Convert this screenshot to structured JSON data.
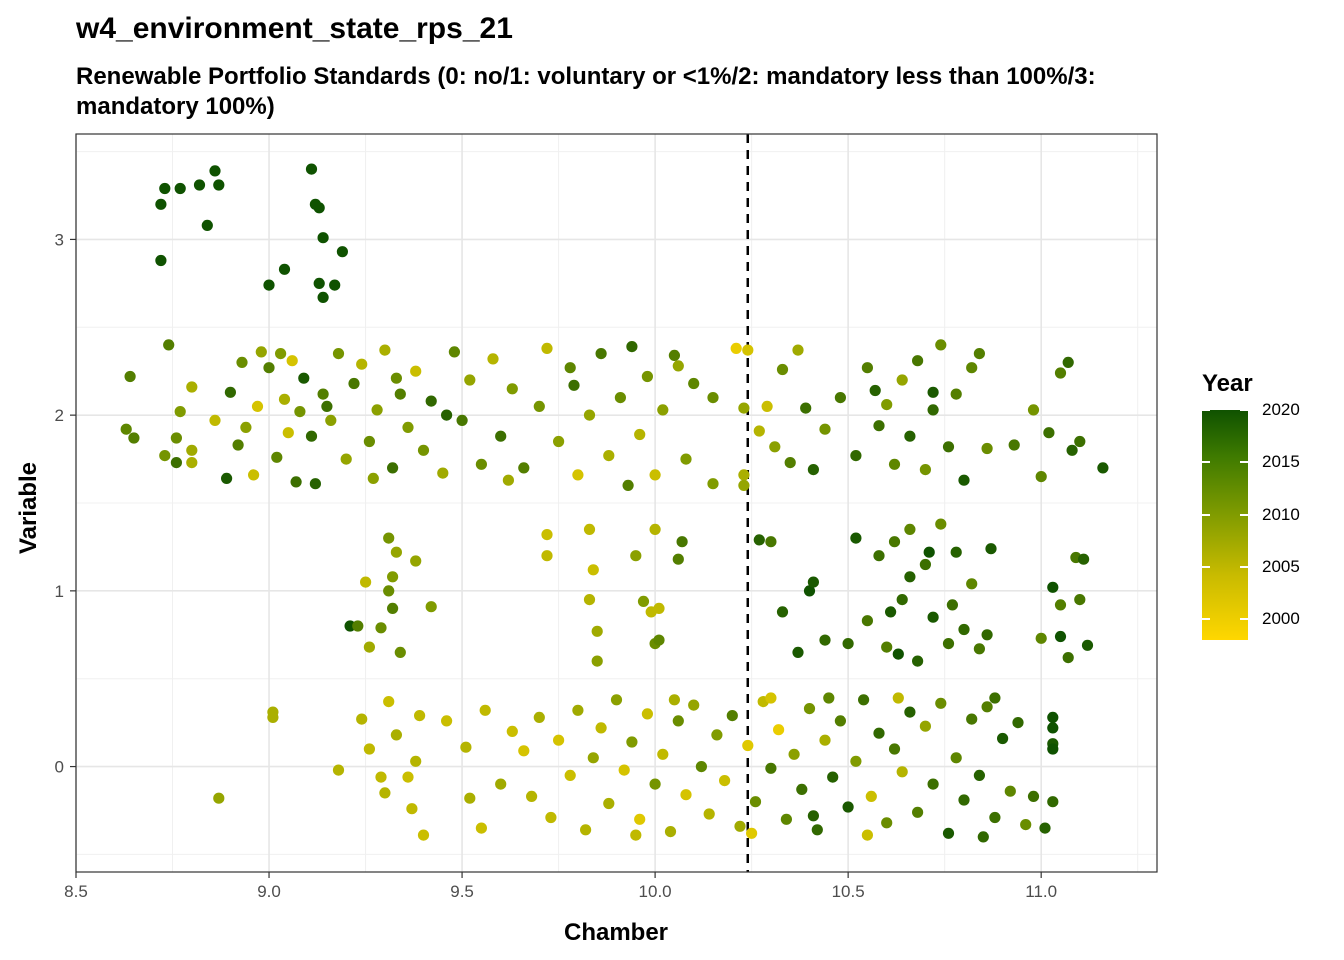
{
  "chart_data": {
    "type": "scatter",
    "title": "w4_environment_state_rps_21",
    "subtitle": "Renewable Portfolio Standards (0: no/1: voluntary or <1%/2: mandatory less than 100%/3: mandatory 100%)",
    "xlabel": "Chamber",
    "ylabel": "Variable",
    "xlim": [
      8.5,
      11.3
    ],
    "ylim": [
      -0.6,
      3.6
    ],
    "x_ticks": [
      "8.5",
      "9.0",
      "9.5",
      "10.0",
      "10.5",
      "11.0"
    ],
    "y_ticks": [
      "0",
      "1",
      "2",
      "3"
    ],
    "grid": true,
    "reference_line": {
      "x": 10.24,
      "style": "dashed"
    },
    "color_scale": {
      "title": "Year",
      "min": 1998,
      "max": 2020,
      "low_color": "#FFD700",
      "high_color": "#0F5200",
      "ticks": [
        "2000",
        "2005",
        "2010",
        "2015",
        "2020"
      ]
    },
    "points": [
      [
        8.72,
        3.2,
        2020
      ],
      [
        8.73,
        3.29,
        2020
      ],
      [
        8.77,
        3.29,
        2020
      ],
      [
        8.82,
        3.31,
        2020
      ],
      [
        8.86,
        3.39,
        2020
      ],
      [
        8.87,
        3.31,
        2020
      ],
      [
        8.84,
        3.08,
        2020
      ],
      [
        8.72,
        2.88,
        2020
      ],
      [
        9.11,
        3.4,
        2020
      ],
      [
        9.12,
        3.2,
        2020
      ],
      [
        9.13,
        3.18,
        2020
      ],
      [
        9.14,
        3.01,
        2020
      ],
      [
        9.19,
        2.93,
        2020
      ],
      [
        9.04,
        2.83,
        2020
      ],
      [
        9.0,
        2.74,
        2020
      ],
      [
        9.13,
        2.75,
        2020
      ],
      [
        9.14,
        2.67,
        2020
      ],
      [
        9.17,
        2.74,
        2020
      ],
      [
        8.64,
        2.22,
        2014
      ],
      [
        8.63,
        1.92,
        2013
      ],
      [
        8.65,
        1.87,
        2014
      ],
      [
        8.73,
        1.77,
        2011
      ],
      [
        8.74,
        2.4,
        2014
      ],
      [
        8.76,
        1.73,
        2016
      ],
      [
        8.76,
        1.87,
        2012
      ],
      [
        8.77,
        2.02,
        2010
      ],
      [
        8.8,
        2.16,
        2006
      ],
      [
        8.8,
        1.73,
        2006
      ],
      [
        8.8,
        1.8,
        2007
      ],
      [
        8.86,
        1.97,
        2004
      ],
      [
        8.89,
        1.64,
        2019
      ],
      [
        8.9,
        2.13,
        2017
      ],
      [
        8.93,
        2.3,
        2012
      ],
      [
        8.94,
        1.93,
        2009
      ],
      [
        8.96,
        1.66,
        2003
      ],
      [
        8.97,
        2.05,
        2002
      ],
      [
        8.98,
        2.36,
        2008
      ],
      [
        9.0,
        2.27,
        2014
      ],
      [
        9.02,
        1.76,
        2013
      ],
      [
        9.04,
        2.09,
        2006
      ],
      [
        9.05,
        1.9,
        2003
      ],
      [
        9.06,
        2.31,
        2002
      ],
      [
        9.07,
        1.62,
        2016
      ],
      [
        9.08,
        2.02,
        2011
      ],
      [
        9.09,
        2.21,
        2019
      ],
      [
        9.11,
        1.88,
        2017
      ],
      [
        9.12,
        1.61,
        2018
      ],
      [
        9.14,
        2.12,
        2014
      ],
      [
        9.16,
        1.97,
        2009
      ],
      [
        9.18,
        2.35,
        2011
      ],
      [
        9.2,
        1.75,
        2008
      ],
      [
        9.22,
        2.18,
        2015
      ],
      [
        9.24,
        2.29,
        2005
      ],
      [
        9.26,
        1.85,
        2012
      ],
      [
        9.28,
        2.03,
        2009
      ],
      [
        9.3,
        2.37,
        2006
      ],
      [
        9.32,
        1.7,
        2016
      ],
      [
        9.34,
        2.12,
        2014
      ],
      [
        9.36,
        1.93,
        2010
      ],
      [
        9.38,
        2.25,
        2003
      ],
      [
        9.4,
        1.8,
        2011
      ],
      [
        9.42,
        2.08,
        2017
      ],
      [
        9.45,
        1.67,
        2007
      ],
      [
        9.48,
        2.36,
        2013
      ],
      [
        9.5,
        1.97,
        2015
      ],
      [
        9.52,
        2.2,
        2008
      ],
      [
        9.55,
        1.72,
        2012
      ],
      [
        9.58,
        2.32,
        2005
      ],
      [
        9.6,
        1.88,
        2016
      ],
      [
        9.63,
        2.15,
        2010
      ],
      [
        9.66,
        1.7,
        2014
      ],
      [
        9.7,
        2.05,
        2011
      ],
      [
        9.72,
        2.38,
        2004
      ],
      [
        9.75,
        1.85,
        2009
      ],
      [
        9.78,
        2.27,
        2013
      ],
      [
        9.8,
        1.66,
        2002
      ],
      [
        9.83,
        2.0,
        2008
      ],
      [
        9.86,
        2.35,
        2015
      ],
      [
        9.88,
        1.77,
        2006
      ],
      [
        9.91,
        2.1,
        2012
      ],
      [
        9.94,
        2.39,
        2017
      ],
      [
        9.96,
        1.89,
        2005
      ],
      [
        9.98,
        2.22,
        2011
      ],
      [
        10.0,
        1.66,
        2003
      ],
      [
        10.02,
        2.03,
        2009
      ],
      [
        10.05,
        2.34,
        2014
      ],
      [
        10.08,
        1.75,
        2010
      ],
      [
        10.1,
        2.18,
        2013
      ],
      [
        10.15,
        2.1,
        2012
      ],
      [
        10.15,
        1.61,
        2010
      ],
      [
        10.21,
        2.38,
        2000
      ],
      [
        10.23,
        2.04,
        2008
      ],
      [
        10.23,
        1.66,
        2006
      ],
      [
        10.23,
        1.6,
        2008
      ],
      [
        10.24,
        2.37,
        2002
      ],
      [
        10.27,
        1.91,
        2005
      ],
      [
        10.29,
        2.05,
        2003
      ],
      [
        10.31,
        1.82,
        2009
      ],
      [
        10.33,
        2.26,
        2012
      ],
      [
        10.35,
        1.73,
        2014
      ],
      [
        10.37,
        2.37,
        2007
      ],
      [
        10.39,
        2.04,
        2016
      ],
      [
        10.41,
        1.69,
        2018
      ],
      [
        10.44,
        1.92,
        2011
      ],
      [
        10.48,
        2.1,
        2015
      ],
      [
        10.52,
        1.77,
        2017
      ],
      [
        10.55,
        2.27,
        2014
      ],
      [
        10.58,
        1.94,
        2016
      ],
      [
        10.6,
        2.06,
        2010
      ],
      [
        10.62,
        1.72,
        2013
      ],
      [
        10.64,
        2.2,
        2008
      ],
      [
        10.66,
        1.88,
        2018
      ],
      [
        10.68,
        2.31,
        2015
      ],
      [
        10.7,
        1.69,
        2011
      ],
      [
        10.72,
        2.03,
        2017
      ],
      [
        10.74,
        2.4,
        2012
      ],
      [
        10.76,
        1.82,
        2016
      ],
      [
        10.78,
        2.12,
        2014
      ],
      [
        10.8,
        1.63,
        2019
      ],
      [
        10.82,
        2.27,
        2013
      ],
      [
        10.86,
        1.81,
        2012
      ],
      [
        10.93,
        1.83,
        2015
      ],
      [
        10.98,
        2.03,
        2011
      ],
      [
        11.0,
        1.65,
        2013
      ],
      [
        11.02,
        1.9,
        2016
      ],
      [
        11.05,
        2.24,
        2014
      ],
      [
        11.07,
        2.3,
        2017
      ],
      [
        11.08,
        1.8,
        2018
      ],
      [
        11.1,
        1.85,
        2016
      ],
      [
        11.16,
        1.7,
        2019
      ],
      [
        8.92,
        1.83,
        2014
      ],
      [
        9.03,
        2.35,
        2010
      ],
      [
        9.15,
        2.05,
        2016
      ],
      [
        9.27,
        1.64,
        2009
      ],
      [
        9.33,
        2.21,
        2012
      ],
      [
        9.46,
        2.0,
        2018
      ],
      [
        9.62,
        1.63,
        2007
      ],
      [
        9.79,
        2.17,
        2016
      ],
      [
        9.93,
        1.6,
        2014
      ],
      [
        10.06,
        2.28,
        2008
      ],
      [
        10.72,
        2.13,
        2019
      ],
      [
        10.84,
        2.35,
        2014
      ],
      [
        10.57,
        2.14,
        2018
      ],
      [
        9.21,
        0.8,
        2020
      ],
      [
        9.23,
        0.8,
        2014
      ],
      [
        9.25,
        1.05,
        2004
      ],
      [
        9.26,
        0.68,
        2007
      ],
      [
        9.29,
        0.79,
        2012
      ],
      [
        9.31,
        1.3,
        2011
      ],
      [
        9.31,
        1.0,
        2012
      ],
      [
        9.32,
        1.08,
        2010
      ],
      [
        9.32,
        0.9,
        2014
      ],
      [
        9.33,
        1.22,
        2008
      ],
      [
        9.34,
        0.65,
        2012
      ],
      [
        9.38,
        1.17,
        2008
      ],
      [
        9.42,
        0.91,
        2010
      ],
      [
        9.72,
        1.32,
        2003
      ],
      [
        9.72,
        1.2,
        2004
      ],
      [
        9.83,
        1.35,
        2004
      ],
      [
        9.83,
        0.95,
        2005
      ],
      [
        9.84,
        1.12,
        2003
      ],
      [
        9.85,
        0.77,
        2007
      ],
      [
        9.85,
        0.6,
        2009
      ],
      [
        9.95,
        1.2,
        2009
      ],
      [
        9.97,
        0.94,
        2010
      ],
      [
        9.99,
        0.88,
        2004
      ],
      [
        10.01,
        0.9,
        2004
      ],
      [
        10.0,
        1.35,
        2005
      ],
      [
        10.0,
        0.7,
        2012
      ],
      [
        10.01,
        0.72,
        2013
      ],
      [
        10.06,
        1.18,
        2014
      ],
      [
        10.07,
        1.28,
        2015
      ],
      [
        10.27,
        1.29,
        2018
      ],
      [
        10.3,
        1.28,
        2015
      ],
      [
        10.33,
        0.88,
        2018
      ],
      [
        10.37,
        0.65,
        2019
      ],
      [
        10.4,
        1.0,
        2020
      ],
      [
        10.41,
        1.05,
        2019
      ],
      [
        10.44,
        0.72,
        2017
      ],
      [
        10.5,
        0.7,
        2017
      ],
      [
        10.52,
        1.3,
        2019
      ],
      [
        10.55,
        0.83,
        2015
      ],
      [
        10.58,
        1.2,
        2016
      ],
      [
        10.6,
        0.68,
        2014
      ],
      [
        10.62,
        1.28,
        2015
      ],
      [
        10.64,
        0.95,
        2017
      ],
      [
        10.66,
        1.35,
        2013
      ],
      [
        10.68,
        0.6,
        2018
      ],
      [
        10.7,
        1.15,
        2016
      ],
      [
        10.72,
        0.85,
        2019
      ],
      [
        10.74,
        1.38,
        2012
      ],
      [
        10.76,
        0.7,
        2016
      ],
      [
        10.78,
        1.22,
        2018
      ],
      [
        10.8,
        0.78,
        2017
      ],
      [
        10.82,
        1.04,
        2013
      ],
      [
        10.84,
        0.67,
        2015
      ],
      [
        10.86,
        0.75,
        2017
      ],
      [
        10.87,
        1.24,
        2019
      ],
      [
        11.0,
        0.73,
        2013
      ],
      [
        11.03,
        1.02,
        2020
      ],
      [
        11.05,
        0.92,
        2014
      ],
      [
        11.07,
        0.62,
        2016
      ],
      [
        11.09,
        1.19,
        2015
      ],
      [
        11.1,
        0.95,
        2015
      ],
      [
        11.11,
        1.18,
        2018
      ],
      [
        11.12,
        0.69,
        2019
      ],
      [
        11.05,
        0.74,
        2020
      ],
      [
        10.63,
        0.64,
        2020
      ],
      [
        10.66,
        1.08,
        2018
      ],
      [
        10.71,
        1.22,
        2020
      ],
      [
        10.77,
        0.92,
        2016
      ],
      [
        10.61,
        0.88,
        2019
      ],
      [
        8.87,
        -0.18,
        2008
      ],
      [
        9.01,
        0.31,
        2006
      ],
      [
        9.01,
        0.28,
        2006
      ],
      [
        9.18,
        -0.02,
        2005
      ],
      [
        9.24,
        0.27,
        2005
      ],
      [
        9.26,
        0.1,
        2004
      ],
      [
        9.29,
        -0.06,
        2004
      ],
      [
        9.3,
        -0.15,
        2005
      ],
      [
        9.31,
        0.37,
        2003
      ],
      [
        9.33,
        0.18,
        2006
      ],
      [
        9.36,
        -0.06,
        2003
      ],
      [
        9.37,
        -0.24,
        2004
      ],
      [
        9.38,
        0.03,
        2005
      ],
      [
        9.39,
        0.29,
        2004
      ],
      [
        9.4,
        -0.39,
        2003
      ],
      [
        9.46,
        0.26,
        2003
      ],
      [
        9.51,
        0.11,
        2005
      ],
      [
        9.52,
        -0.18,
        2006
      ],
      [
        9.55,
        -0.35,
        2003
      ],
      [
        9.56,
        0.32,
        2004
      ],
      [
        9.6,
        -0.1,
        2007
      ],
      [
        9.63,
        0.2,
        2003
      ],
      [
        9.66,
        0.09,
        2002
      ],
      [
        9.68,
        -0.17,
        2005
      ],
      [
        9.7,
        0.28,
        2006
      ],
      [
        9.73,
        -0.29,
        2004
      ],
      [
        9.75,
        0.15,
        2002
      ],
      [
        9.78,
        -0.05,
        2003
      ],
      [
        9.8,
        0.32,
        2007
      ],
      [
        9.82,
        -0.36,
        2005
      ],
      [
        9.84,
        0.05,
        2008
      ],
      [
        9.86,
        0.22,
        2004
      ],
      [
        9.88,
        -0.21,
        2006
      ],
      [
        9.9,
        0.38,
        2009
      ],
      [
        9.92,
        -0.02,
        2002
      ],
      [
        9.94,
        0.14,
        2010
      ],
      [
        9.96,
        -0.3,
        2001
      ],
      [
        9.98,
        0.3,
        2003
      ],
      [
        10.0,
        -0.1,
        2011
      ],
      [
        10.02,
        0.07,
        2004
      ],
      [
        10.04,
        -0.37,
        2006
      ],
      [
        10.06,
        0.26,
        2012
      ],
      [
        10.08,
        -0.16,
        2002
      ],
      [
        10.1,
        0.35,
        2008
      ],
      [
        10.12,
        0.0,
        2013
      ],
      [
        10.14,
        -0.27,
        2005
      ],
      [
        10.16,
        0.18,
        2010
      ],
      [
        10.18,
        -0.08,
        2003
      ],
      [
        10.2,
        0.29,
        2014
      ],
      [
        10.22,
        -0.34,
        2007
      ],
      [
        10.24,
        0.12,
        2001
      ],
      [
        10.26,
        -0.2,
        2012
      ],
      [
        10.28,
        0.37,
        2004
      ],
      [
        10.3,
        -0.01,
        2015
      ],
      [
        10.32,
        0.21,
        2000
      ],
      [
        10.34,
        -0.3,
        2013
      ],
      [
        10.36,
        0.07,
        2009
      ],
      [
        10.38,
        -0.13,
        2016
      ],
      [
        10.4,
        0.33,
        2011
      ],
      [
        10.42,
        -0.36,
        2017
      ],
      [
        10.44,
        0.15,
        2006
      ],
      [
        10.46,
        -0.06,
        2018
      ],
      [
        10.48,
        0.26,
        2014
      ],
      [
        10.5,
        -0.23,
        2019
      ],
      [
        10.52,
        0.03,
        2010
      ],
      [
        10.54,
        0.38,
        2016
      ],
      [
        10.56,
        -0.17,
        2003
      ],
      [
        10.58,
        0.19,
        2017
      ],
      [
        10.6,
        -0.32,
        2012
      ],
      [
        10.62,
        0.1,
        2015
      ],
      [
        10.64,
        -0.03,
        2005
      ],
      [
        10.66,
        0.31,
        2018
      ],
      [
        10.68,
        -0.26,
        2014
      ],
      [
        10.7,
        0.23,
        2008
      ],
      [
        10.72,
        -0.1,
        2016
      ],
      [
        10.74,
        0.36,
        2012
      ],
      [
        10.76,
        -0.38,
        2019
      ],
      [
        10.78,
        0.05,
        2013
      ],
      [
        10.8,
        -0.19,
        2017
      ],
      [
        10.82,
        0.27,
        2015
      ],
      [
        10.84,
        -0.05,
        2018
      ],
      [
        10.86,
        0.34,
        2014
      ],
      [
        10.88,
        -0.29,
        2016
      ],
      [
        10.9,
        0.16,
        2019
      ],
      [
        10.92,
        -0.14,
        2013
      ],
      [
        10.94,
        0.25,
        2017
      ],
      [
        10.96,
        -0.33,
        2012
      ],
      [
        10.98,
        -0.17,
        2016
      ],
      [
        11.01,
        -0.35,
        2018
      ],
      [
        11.03,
        -0.2,
        2017
      ],
      [
        11.03,
        0.28,
        2020
      ],
      [
        11.03,
        0.22,
        2020
      ],
      [
        11.03,
        0.13,
        2019
      ],
      [
        11.03,
        0.1,
        2020
      ],
      [
        10.25,
        -0.38,
        2001
      ],
      [
        10.3,
        0.39,
        2002
      ],
      [
        10.55,
        -0.39,
        2003
      ],
      [
        10.63,
        0.39,
        2004
      ],
      [
        9.95,
        -0.39,
        2004
      ],
      [
        10.05,
        0.38,
        2006
      ],
      [
        10.45,
        0.39,
        2013
      ],
      [
        10.88,
        0.39,
        2016
      ],
      [
        10.41,
        -0.28,
        2018
      ],
      [
        10.85,
        -0.4,
        2017
      ]
    ]
  }
}
